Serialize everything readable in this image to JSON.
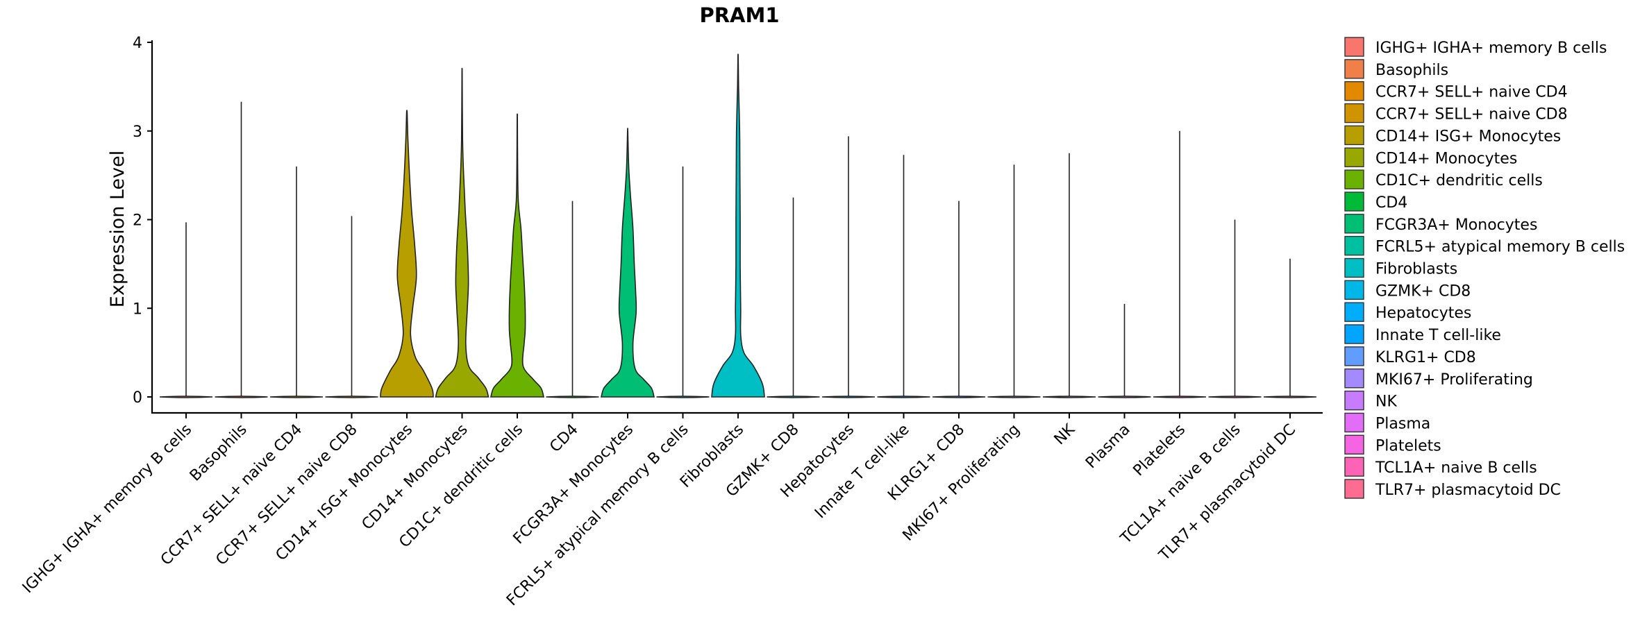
{
  "chart_data": {
    "type": "violin",
    "title": "PRAM1",
    "xlabel": "",
    "ylabel": "Expression Level",
    "ylim": [
      -0.2,
      4.05
    ],
    "yticks": [
      0,
      1,
      2,
      3,
      4
    ],
    "ytick_labels": [
      "0",
      "1",
      "2",
      "3",
      "4"
    ],
    "legend_position": "right",
    "series": [
      {
        "name": " IGHG+ IGHA+ memory B cells",
        "label": "IGHG+ IGHA+ memory B cells",
        "color": "#F8766D",
        "max": 1.97,
        "shape": [
          [
            0,
            1.0
          ]
        ]
      },
      {
        "name": "Basophils",
        "label": "Basophils",
        "color": "#F07F4A",
        "max": 3.33,
        "shape": [
          [
            0,
            1.0
          ]
        ]
      },
      {
        "name": "CCR7+ SELL+ naive CD4",
        "label": "CCR7+ SELL+ naive CD4",
        "color": "#E38900",
        "max": 2.6,
        "shape": [
          [
            0,
            1.0
          ]
        ]
      },
      {
        "name": "CCR7+ SELL+ naive CD8",
        "label": "CCR7+ SELL+ naive CD8",
        "color": "#D09400",
        "max": 2.04,
        "shape": [
          [
            0,
            1.0
          ]
        ]
      },
      {
        "name": "CD14+ ISG+ Monocytes",
        "label": "CD14+ ISG+ Monocytes",
        "color": "#B79F00",
        "max": 3.21,
        "shape": [
          [
            0,
            1.0
          ],
          [
            0.1,
            0.95
          ],
          [
            0.3,
            0.62
          ],
          [
            0.45,
            0.32
          ],
          [
            0.7,
            0.14
          ],
          [
            1.0,
            0.22
          ],
          [
            1.35,
            0.36
          ],
          [
            1.7,
            0.3
          ],
          [
            2.1,
            0.18
          ],
          [
            2.5,
            0.1
          ],
          [
            2.9,
            0.04
          ],
          [
            3.21,
            0.01
          ]
        ]
      },
      {
        "name": "CD14+ Monocytes",
        "label": "CD14+ Monocytes",
        "color": "#99A800",
        "max": 3.65,
        "shape": [
          [
            0,
            1.0
          ],
          [
            0.1,
            0.9
          ],
          [
            0.22,
            0.6
          ],
          [
            0.35,
            0.25
          ],
          [
            0.6,
            0.14
          ],
          [
            1.0,
            0.2
          ],
          [
            1.3,
            0.24
          ],
          [
            1.7,
            0.2
          ],
          [
            2.1,
            0.12
          ],
          [
            2.5,
            0.06
          ],
          [
            2.9,
            0.02
          ],
          [
            3.65,
            0.005
          ]
        ]
      },
      {
        "name": "CD1C+ dendritic cells",
        "label": "CD1C+ dendritic cells",
        "color": "#6BB100",
        "max": 3.15,
        "shape": [
          [
            0,
            1.0
          ],
          [
            0.1,
            0.9
          ],
          [
            0.2,
            0.6
          ],
          [
            0.35,
            0.22
          ],
          [
            0.6,
            0.26
          ],
          [
            0.75,
            0.3
          ],
          [
            1.0,
            0.3
          ],
          [
            1.3,
            0.26
          ],
          [
            1.6,
            0.2
          ],
          [
            1.9,
            0.14
          ],
          [
            2.2,
            0.04
          ],
          [
            2.6,
            0.015
          ],
          [
            3.15,
            0.005
          ]
        ]
      },
      {
        "name": "CD4",
        "label": "CD4",
        "color": "#00BA38",
        "max": 2.21,
        "shape": [
          [
            0,
            1.0
          ]
        ]
      },
      {
        "name": "FCGR3A+ Monocytes",
        "label": "FCGR3A+ Monocytes",
        "color": "#00BF74",
        "max": 3.0,
        "shape": [
          [
            0,
            1.0
          ],
          [
            0.1,
            0.9
          ],
          [
            0.2,
            0.6
          ],
          [
            0.32,
            0.28
          ],
          [
            0.6,
            0.2
          ],
          [
            0.95,
            0.32
          ],
          [
            1.2,
            0.3
          ],
          [
            1.5,
            0.25
          ],
          [
            1.9,
            0.2
          ],
          [
            2.3,
            0.1
          ],
          [
            2.6,
            0.04
          ],
          [
            3.0,
            0.005
          ]
        ]
      },
      {
        "name": "FCRL5+ atypical memory B cells",
        "label": "FCRL5+ atypical memory B cells",
        "color": "#00C19F",
        "max": 2.6,
        "shape": [
          [
            0,
            1.0
          ]
        ]
      },
      {
        "name": "Fibroblasts",
        "label": "Fibroblasts",
        "color": "#00BFC4",
        "max": 3.84,
        "shape": [
          [
            0,
            1.0
          ],
          [
            0.15,
            0.92
          ],
          [
            0.35,
            0.58
          ],
          [
            0.5,
            0.22
          ],
          [
            0.7,
            0.1
          ],
          [
            1.0,
            0.1
          ],
          [
            1.5,
            0.08
          ],
          [
            2.0,
            0.08
          ],
          [
            2.5,
            0.07
          ],
          [
            3.0,
            0.06
          ],
          [
            3.5,
            0.02
          ],
          [
            3.84,
            0.005
          ]
        ]
      },
      {
        "name": "GZMK+ CD8",
        "label": "GZMK+ CD8",
        "color": "#00B8E7",
        "max": 2.25,
        "shape": [
          [
            0,
            1.0
          ]
        ]
      },
      {
        "name": "Hepatocytes",
        "label": "Hepatocytes",
        "color": "#00ADFA",
        "max": 2.94,
        "shape": [
          [
            0,
            1.0
          ]
        ]
      },
      {
        "name": "Innate T cell-like",
        "label": "Innate T cell-like",
        "color": "#00A5FF",
        "max": 2.73,
        "shape": [
          [
            0,
            1.0
          ]
        ]
      },
      {
        "name": "KLRG1+ CD8",
        "label": "KLRG1+ CD8",
        "color": "#619CFF",
        "max": 2.21,
        "shape": [
          [
            0,
            1.0
          ]
        ]
      },
      {
        "name": "MKI67+ Proliferating",
        "label": "MKI67+ Proliferating",
        "color": "#A58AFF",
        "max": 2.62,
        "shape": [
          [
            0,
            1.0
          ]
        ]
      },
      {
        "name": "NK",
        "label": "NK",
        "color": "#C77CFF",
        "max": 2.75,
        "shape": [
          [
            0,
            1.0
          ]
        ]
      },
      {
        "name": "Plasma",
        "label": "Plasma",
        "color": "#E26EF7",
        "max": 1.05,
        "shape": [
          [
            0,
            1.0
          ]
        ]
      },
      {
        "name": "Platelets",
        "label": "Platelets",
        "color": "#F564E3",
        "max": 3.0,
        "shape": [
          [
            0,
            1.0
          ]
        ]
      },
      {
        "name": "TCL1A+ naive B cells",
        "label": "TCL1A+ naive B cells",
        "color": "#FF63B6",
        "max": 2.0,
        "shape": [
          [
            0,
            1.0
          ]
        ]
      },
      {
        "name": "TLR7+ plasmacytoid DC",
        "label": "TLR7+ plasmacytoid DC",
        "color": "#FF6C91",
        "max": 1.56,
        "shape": [
          [
            0,
            1.0
          ]
        ]
      }
    ]
  }
}
